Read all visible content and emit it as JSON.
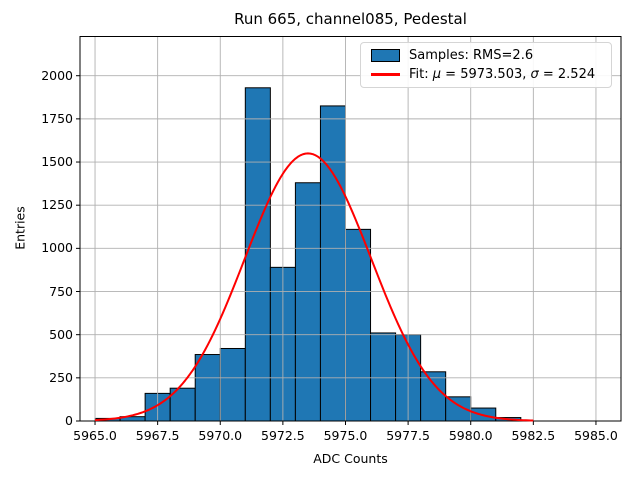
{
  "chart_data": {
    "type": "bar",
    "subtype": "histogram",
    "title": "Run 665, channel085, Pedestal",
    "xlabel": "ADC Counts",
    "ylabel": "Entries",
    "bin_start": 5965,
    "bin_width": 1,
    "bin_counts": [
      15,
      25,
      160,
      190,
      385,
      420,
      1930,
      890,
      1380,
      1825,
      1110,
      510,
      500,
      285,
      140,
      75,
      20
    ],
    "fit": {
      "type": "gaussian",
      "mu": 5973.503,
      "sigma": 2.524,
      "amplitude": 1550,
      "x_range": [
        5965.0,
        5982.5
      ]
    },
    "legend": {
      "position": "upper right",
      "samples": {
        "label": "Samples: RMS=2.6",
        "swatch": "blue-filled-box"
      },
      "fit": {
        "label": "Fit: μ = 5973.503, σ = 2.524",
        "swatch": "red-line"
      }
    },
    "x_ticks": [
      5965.0,
      5967.5,
      5970.0,
      5972.5,
      5975.0,
      5977.5,
      5980.0,
      5982.5,
      5985.0
    ],
    "x_tick_labels": [
      "5965.0",
      "5967.5",
      "5970.0",
      "5972.5",
      "5975.0",
      "5977.5",
      "5980.0",
      "5982.5",
      "5985.0"
    ],
    "y_ticks": [
      0,
      250,
      500,
      750,
      1000,
      1250,
      1500,
      1750,
      2000
    ],
    "y_tick_labels": [
      "0",
      "250",
      "500",
      "750",
      "1000",
      "1250",
      "1500",
      "1750",
      "2000"
    ],
    "xlim": [
      5964.4,
      5986.0
    ],
    "ylim": [
      0,
      2230
    ],
    "grid": true,
    "colors": {
      "bar_fill": "#1f77b4",
      "bar_edge": "#000000",
      "fit_line": "#ff0000",
      "grid": "#b0b0b0",
      "frame": "#000000"
    }
  }
}
